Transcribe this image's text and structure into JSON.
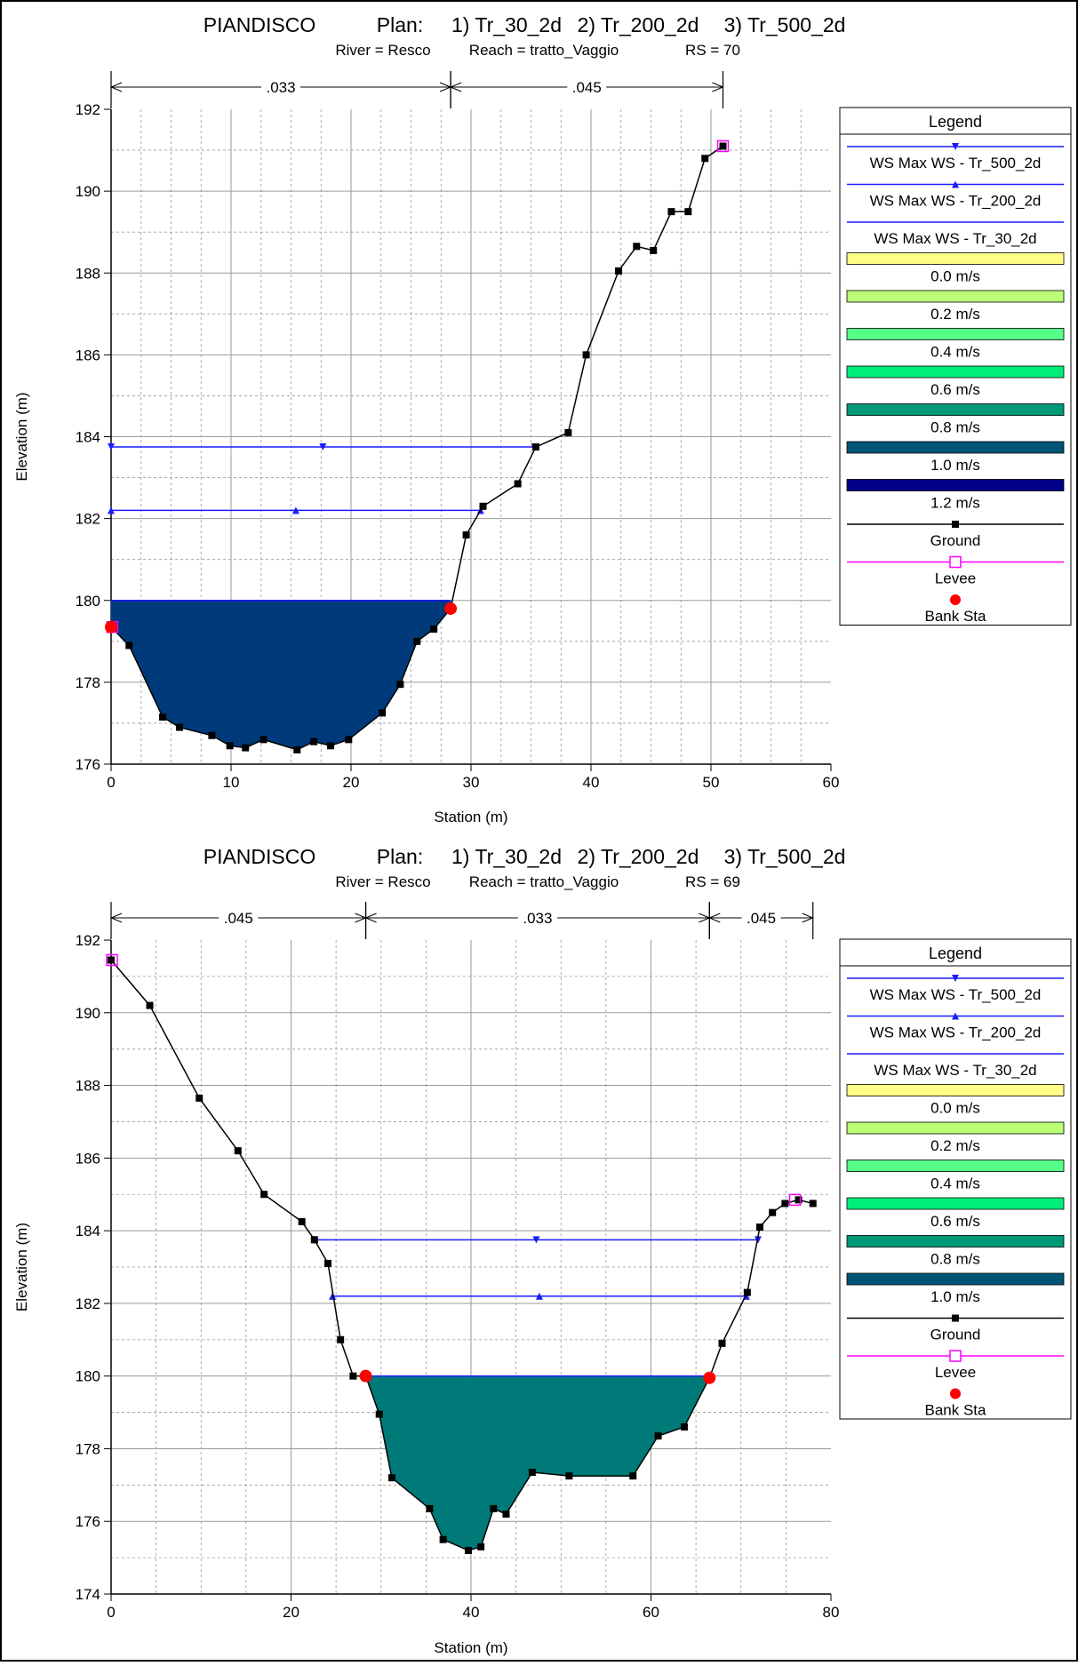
{
  "colors": {
    "ws_line": "#1a1aff",
    "ground": "#000000",
    "levee": "#ff00ff",
    "bank": "#ff0000",
    "grid": "#9a9a9a",
    "velocity_scale": [
      "#ffff88",
      "#bbff77",
      "#55ff88",
      "#00ee77",
      "#009977",
      "#005577",
      "#000088"
    ]
  },
  "charts": [
    {
      "title": "PIANDISCO",
      "plan_label": "Plan:",
      "plans": [
        "1) Tr_30_2d",
        "2) Tr_200_2d",
        "3) Tr_500_2d"
      ],
      "river": "River = Resco",
      "reach": "Reach = tratto_Vaggio",
      "rs": "RS = 70",
      "xlabel": "Station (m)",
      "ylabel": "Elevation (m)",
      "legend_title": "Legend",
      "legend_ws": [
        "WS Max WS - Tr_500_2d",
        "WS Max WS - Tr_200_2d",
        "WS Max WS - Tr_30_2d"
      ],
      "legend_velocity": [
        "0.0 m/s",
        "0.2 m/s",
        "0.4 m/s",
        "0.6 m/s",
        "0.8 m/s",
        "1.0 m/s",
        "1.2 m/s"
      ],
      "legend_ground": "Ground",
      "legend_levee": "Levee",
      "legend_bank": "Bank Sta"
    },
    {
      "title": "PIANDISCO",
      "plan_label": "Plan:",
      "plans": [
        "1) Tr_30_2d",
        "2) Tr_200_2d",
        "3) Tr_500_2d"
      ],
      "river": "River = Resco",
      "reach": "Reach = tratto_Vaggio",
      "rs": "RS = 69",
      "xlabel": "Station (m)",
      "ylabel": "Elevation (m)",
      "legend_title": "Legend",
      "legend_ws": [
        "WS Max WS - Tr_500_2d",
        "WS Max WS - Tr_200_2d",
        "WS Max WS - Tr_30_2d"
      ],
      "legend_velocity": [
        "0.0 m/s",
        "0.2 m/s",
        "0.4 m/s",
        "0.6 m/s",
        "0.8 m/s",
        "1.0 m/s"
      ],
      "legend_ground": "Ground",
      "legend_levee": "Levee",
      "legend_bank": "Bank Sta"
    }
  ],
  "chart_data": [
    {
      "type": "area",
      "title": "PIANDISCO",
      "xlabel": "Station (m)",
      "ylabel": "Elevation (m)",
      "xlim": [
        0,
        60
      ],
      "ylim": [
        176,
        192
      ],
      "xticks": [
        0,
        10,
        20,
        30,
        40,
        50,
        60
      ],
      "yticks": [
        176,
        178,
        180,
        182,
        184,
        186,
        188,
        190,
        192
      ],
      "grid": true,
      "legend_position": "right",
      "ground": {
        "x": [
          0,
          1.5,
          4.3,
          5.7,
          8.4,
          9.9,
          11.2,
          12.7,
          15.5,
          16.9,
          18.3,
          19.8,
          22.6,
          24.1,
          25.5,
          26.9,
          28.3,
          29.6,
          31.0,
          33.9,
          35.4,
          38.1,
          39.6,
          42.3,
          43.8,
          45.2,
          46.7,
          48.1,
          49.5,
          51.0
        ],
        "y": [
          179.35,
          178.9,
          177.15,
          176.9,
          176.7,
          176.45,
          176.4,
          176.6,
          176.35,
          176.55,
          176.45,
          176.6,
          177.25,
          177.95,
          179.0,
          179.3,
          179.8,
          181.6,
          182.3,
          182.85,
          183.75,
          184.1,
          186.0,
          188.05,
          188.65,
          188.55,
          189.5,
          189.5,
          190.8,
          191.1
        ]
      },
      "manning": [
        {
          "label": ".033",
          "from": 0,
          "to": 28.3
        },
        {
          "label": ".045",
          "from": 28.3,
          "to": 51.0
        }
      ],
      "ws": [
        {
          "name": "WS Max WS - Tr_500_2d",
          "elev": 183.75,
          "from": 0,
          "to": 35.3,
          "marker": "down"
        },
        {
          "name": "WS Max WS - Tr_200_2d",
          "elev": 182.2,
          "from": 0,
          "to": 30.8,
          "marker": "up"
        }
      ],
      "fill": {
        "elev": 180.0,
        "color": "#003a7a"
      },
      "bank_sta": [
        0,
        28.3
      ],
      "levee": [
        0.1,
        51.0
      ]
    },
    {
      "type": "area",
      "title": "PIANDISCO",
      "xlabel": "Station (m)",
      "ylabel": "Elevation (m)",
      "xlim": [
        0,
        80
      ],
      "ylim": [
        174,
        192
      ],
      "xticks": [
        0,
        20,
        40,
        60,
        80
      ],
      "yticks": [
        174,
        176,
        178,
        180,
        182,
        184,
        186,
        188,
        190,
        192
      ],
      "grid": true,
      "legend_position": "right",
      "ground": {
        "x": [
          0,
          4.3,
          9.8,
          14.1,
          17.0,
          21.2,
          22.6,
          24.1,
          25.5,
          26.9,
          28.3,
          29.8,
          31.2,
          35.4,
          36.9,
          39.7,
          41.1,
          42.5,
          43.9,
          46.8,
          50.9,
          58.0,
          60.8,
          63.7,
          66.5,
          67.9,
          70.7,
          72.1,
          73.5,
          74.9,
          76.4,
          78.0
        ],
        "y": [
          191.45,
          190.2,
          187.65,
          186.2,
          185.0,
          184.25,
          183.75,
          183.1,
          181.0,
          180.0,
          180.0,
          178.95,
          177.2,
          176.35,
          175.5,
          175.2,
          175.3,
          176.35,
          176.2,
          177.35,
          177.25,
          177.25,
          178.35,
          178.6,
          179.95,
          180.9,
          182.3,
          184.1,
          184.5,
          184.75,
          184.85,
          184.75
        ]
      },
      "manning": [
        {
          "label": ".045",
          "from": 0,
          "to": 28.3
        },
        {
          "label": ".033",
          "from": 28.3,
          "to": 66.5
        },
        {
          "label": ".045",
          "from": 66.5,
          "to": 78.0
        }
      ],
      "ws": [
        {
          "name": "WS Max WS - Tr_500_2d",
          "elev": 183.75,
          "from": 22.6,
          "to": 71.9,
          "marker": "down"
        },
        {
          "name": "WS Max WS - Tr_200_2d",
          "elev": 182.2,
          "from": 24.6,
          "to": 70.6,
          "marker": "up"
        }
      ],
      "fill": {
        "elev": 180.0,
        "color": "#007a78"
      },
      "bank_sta": [
        28.3,
        66.5
      ],
      "levee": [
        0.1,
        76.0
      ]
    }
  ]
}
